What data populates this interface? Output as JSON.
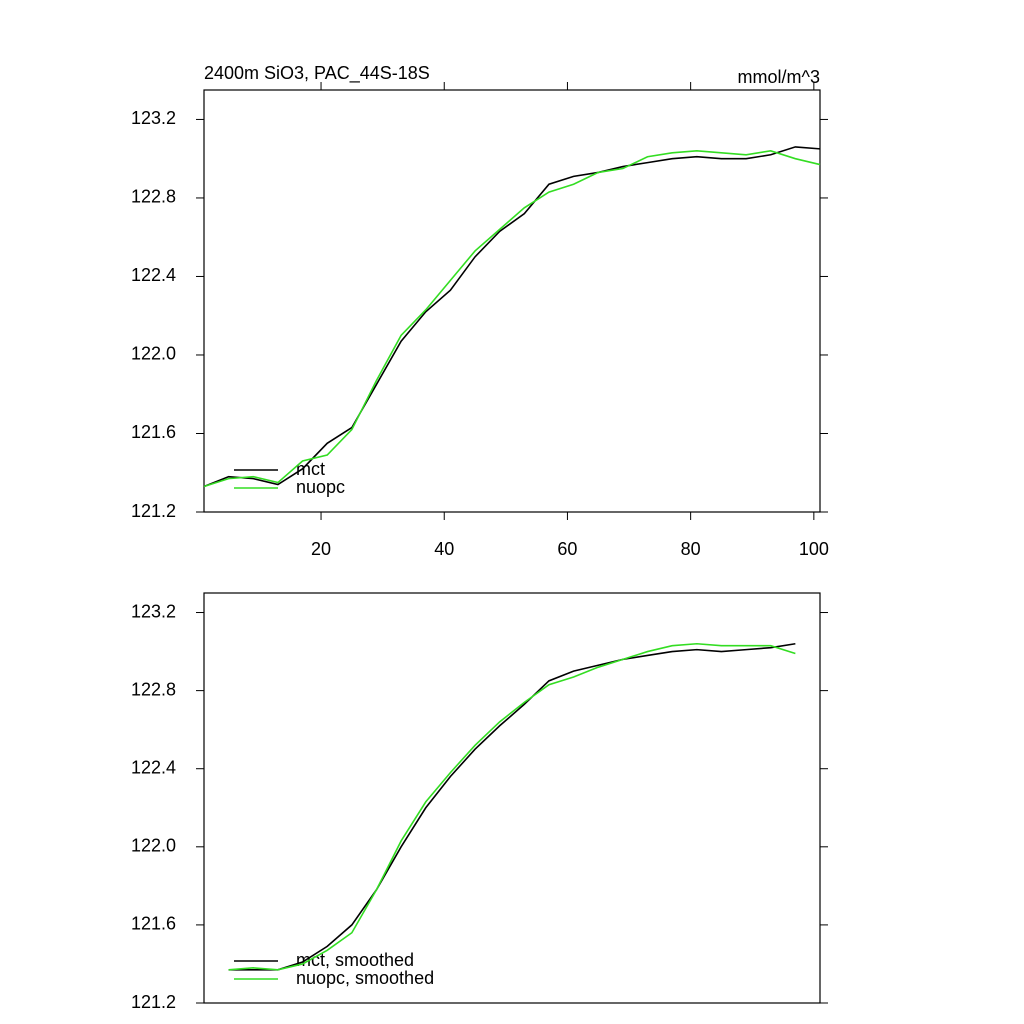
{
  "chart_data": [
    {
      "type": "line",
      "title": "2400m SiO3, PAC_44S-18S",
      "units": "mmol/m^3",
      "x": [
        1,
        5,
        9,
        13,
        17,
        21,
        25,
        29,
        33,
        37,
        41,
        45,
        49,
        53,
        57,
        61,
        65,
        69,
        73,
        77,
        81,
        85,
        89,
        93,
        97,
        101
      ],
      "series": [
        {
          "name": "mct",
          "color": "#000000",
          "values": [
            121.33,
            121.38,
            121.37,
            121.34,
            121.42,
            121.55,
            121.63,
            121.85,
            122.07,
            122.22,
            122.33,
            122.5,
            122.63,
            122.72,
            122.87,
            122.91,
            122.93,
            122.96,
            122.98,
            123.0,
            123.01,
            123.0,
            123.0,
            123.02,
            123.06,
            123.05
          ]
        },
        {
          "name": "nuopc",
          "color": "#33dd22",
          "values": [
            121.33,
            121.37,
            121.38,
            121.35,
            121.46,
            121.49,
            121.62,
            121.87,
            122.1,
            122.23,
            122.38,
            122.53,
            122.64,
            122.75,
            122.83,
            122.87,
            122.93,
            122.95,
            123.01,
            123.03,
            123.04,
            123.03,
            123.02,
            123.04,
            123.0,
            122.97
          ]
        }
      ],
      "xlim": [
        1,
        101
      ],
      "xticks": [
        20,
        40,
        60,
        80,
        100
      ],
      "ylim": [
        121.2,
        123.35
      ],
      "yticks": [
        {
          "value": 121.2,
          "label": "121.2"
        },
        {
          "value": 121.6,
          "label": "121.6"
        },
        {
          "value": 122.0,
          "label": "122.0"
        },
        {
          "value": 122.4,
          "label": "122.4"
        },
        {
          "value": 122.8,
          "label": "122.8"
        },
        {
          "value": 123.2,
          "label": "123.2"
        }
      ],
      "legend": "lower-left"
    },
    {
      "type": "line",
      "x": [
        5,
        9,
        13,
        17,
        21,
        25,
        29,
        33,
        37,
        41,
        45,
        49,
        53,
        57,
        61,
        65,
        69,
        73,
        77,
        81,
        85,
        89,
        93,
        97
      ],
      "series": [
        {
          "name": "mct, smoothed",
          "color": "#000000",
          "values": [
            121.37,
            121.37,
            121.37,
            121.41,
            121.49,
            121.6,
            121.78,
            122.0,
            122.2,
            122.36,
            122.5,
            122.62,
            122.73,
            122.85,
            122.9,
            122.93,
            122.96,
            122.98,
            123.0,
            123.01,
            123.0,
            123.01,
            123.02,
            123.04
          ]
        },
        {
          "name": "nuopc, smoothed",
          "color": "#33dd22",
          "values": [
            121.37,
            121.38,
            121.37,
            121.4,
            121.47,
            121.56,
            121.78,
            122.03,
            122.23,
            122.38,
            122.52,
            122.64,
            122.74,
            122.83,
            122.87,
            122.92,
            122.96,
            123.0,
            123.03,
            123.04,
            123.03,
            123.03,
            123.03,
            122.99
          ]
        }
      ],
      "xlim": [
        1,
        101
      ],
      "ylim": [
        121.2,
        123.3
      ],
      "yticks": [
        {
          "value": 121.2,
          "label": "121.2"
        },
        {
          "value": 121.6,
          "label": "121.6"
        },
        {
          "value": 122.0,
          "label": "122.0"
        },
        {
          "value": 122.4,
          "label": "122.4"
        },
        {
          "value": 122.8,
          "label": "122.8"
        },
        {
          "value": 123.2,
          "label": "123.2"
        }
      ],
      "legend": "lower-left"
    }
  ]
}
